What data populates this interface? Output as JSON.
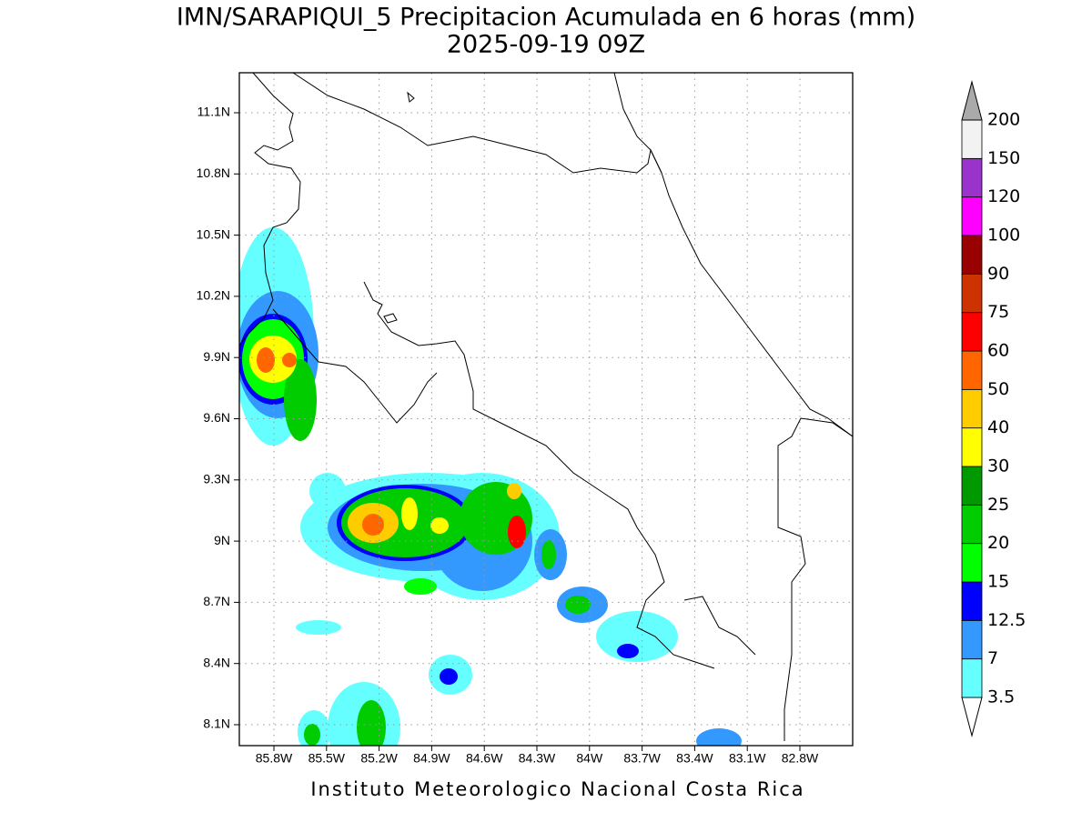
{
  "header": {
    "title": "IMN/SARAPIQUI_5 Precipitacion Acumulada en 6 horas (mm)",
    "subtitle": "2025-09-19 09Z"
  },
  "map": {
    "lat_labels": [
      "11.1N",
      "10.8N",
      "10.5N",
      "10.2N",
      "9.9N",
      "9.6N",
      "9.3N",
      "9N",
      "8.7N",
      "8.4N",
      "8.1N"
    ],
    "lon_labels": [
      "85.8W",
      "85.5W",
      "85.2W",
      "84.9W",
      "84.6W",
      "84.3W",
      "84W",
      "83.7W",
      "83.4W",
      "83.1W",
      "82.8W"
    ]
  },
  "colorbar": {
    "labels": [
      "3.5",
      "7",
      "12.5",
      "15",
      "20",
      "25",
      "30",
      "40",
      "50",
      "60",
      "75",
      "90",
      "100",
      "120",
      "150",
      "200"
    ],
    "colors": [
      "#ffffff",
      "#66ffff",
      "#3399ff",
      "#0000ff",
      "#00ff00",
      "#00cc00",
      "#009900",
      "#ffff00",
      "#ffcc00",
      "#ff6600",
      "#ff0000",
      "#cc3300",
      "#990000",
      "#ff00ff",
      "#9933cc",
      "#f2f2f2",
      "#aaaaaa"
    ]
  },
  "footer": "Instituto Meteorologico Nacional Costa Rica"
}
